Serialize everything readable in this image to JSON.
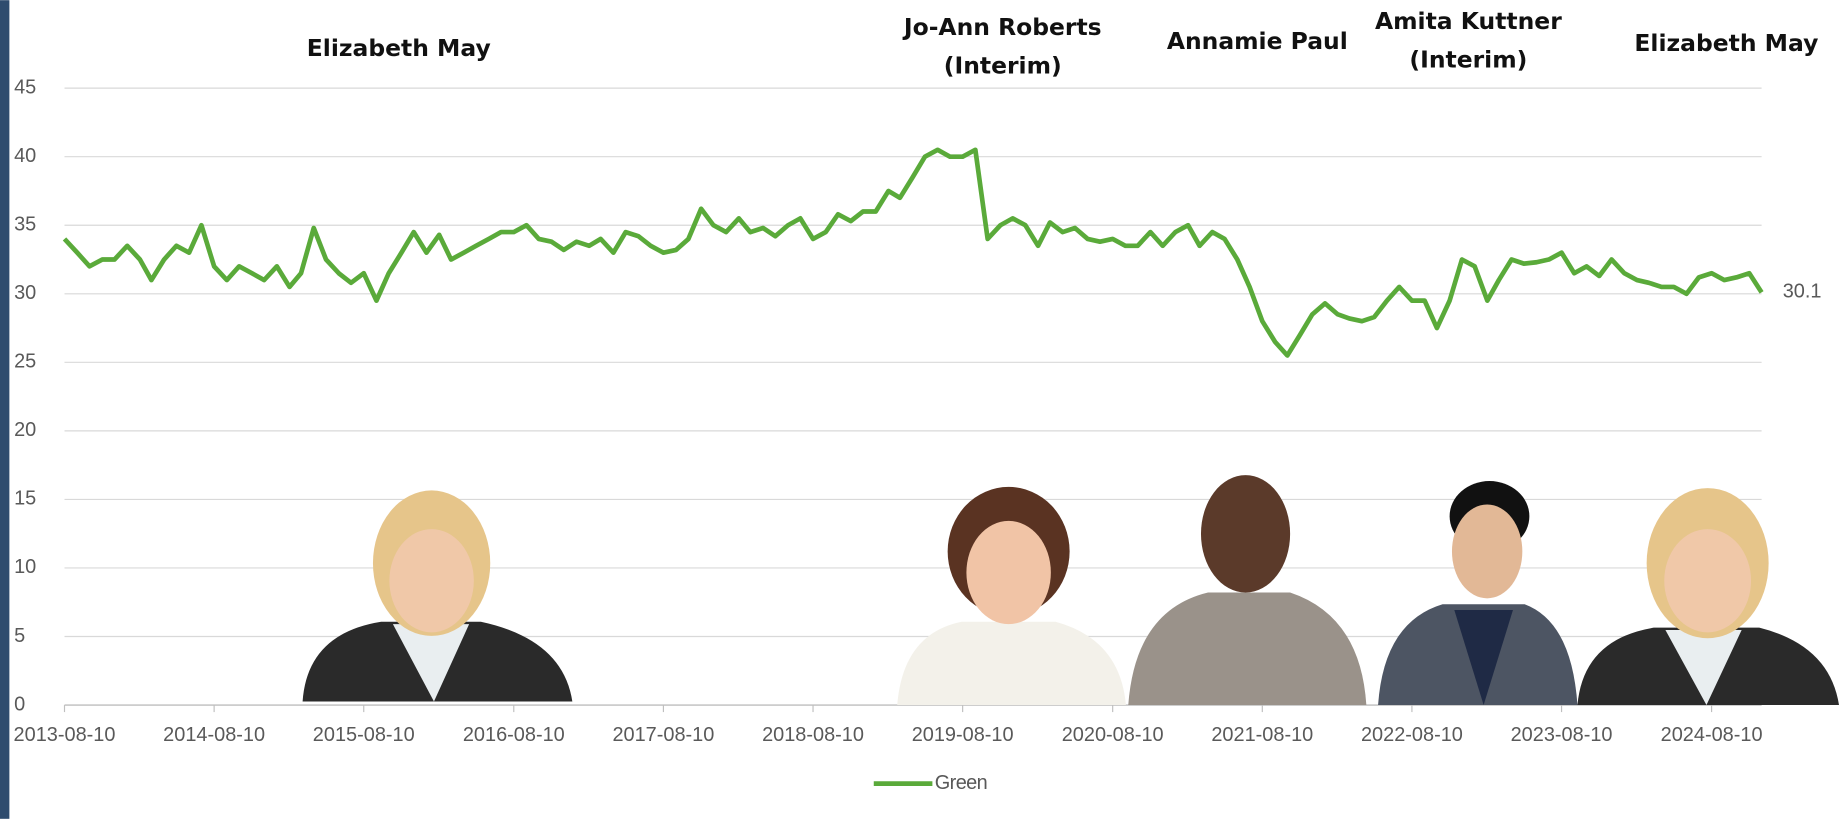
{
  "chart_data": {
    "type": "line",
    "annotations": [
      [
        "Elizabeth May"
      ],
      [
        "Jo-Ann Roberts",
        "(Interim)"
      ],
      [
        "Annamie Paul"
      ],
      [
        "Amita Kuttner",
        "(Interim)"
      ],
      [
        "Elizabeth May"
      ]
    ],
    "x": [
      "2013-08-10",
      "2013-09-10",
      "2013-10-10",
      "2013-11-10",
      "2013-12-10",
      "2014-01-10",
      "2014-02-10",
      "2014-03-10",
      "2014-04-10",
      "2014-05-10",
      "2014-06-10",
      "2014-07-10",
      "2014-08-10",
      "2014-09-10",
      "2014-10-10",
      "2014-11-10",
      "2014-12-10",
      "2015-01-10",
      "2015-02-10",
      "2015-03-10",
      "2015-04-10",
      "2015-05-10",
      "2015-06-10",
      "2015-07-10",
      "2015-08-10",
      "2015-09-10",
      "2015-10-10",
      "2015-11-10",
      "2015-12-10",
      "2016-01-10",
      "2016-02-10",
      "2016-03-10",
      "2016-04-10",
      "2016-05-10",
      "2016-06-10",
      "2016-07-10",
      "2016-08-10",
      "2016-09-10",
      "2016-10-10",
      "2016-11-10",
      "2016-12-10",
      "2017-01-10",
      "2017-02-10",
      "2017-03-10",
      "2017-04-10",
      "2017-05-10",
      "2017-06-10",
      "2017-07-10",
      "2017-08-10",
      "2017-09-10",
      "2017-10-10",
      "2017-11-10",
      "2017-12-10",
      "2018-01-10",
      "2018-02-10",
      "2018-03-10",
      "2018-04-10",
      "2018-05-10",
      "2018-06-10",
      "2018-07-10",
      "2018-08-10",
      "2018-09-10",
      "2018-10-10",
      "2018-11-10",
      "2018-12-10",
      "2019-01-10",
      "2019-02-10",
      "2019-03-10",
      "2019-04-10",
      "2019-05-10",
      "2019-06-10",
      "2019-07-10",
      "2019-08-10",
      "2019-09-10",
      "2019-10-10",
      "2019-11-10",
      "2019-12-10",
      "2020-01-10",
      "2020-02-10",
      "2020-03-10",
      "2020-04-10",
      "2020-05-10",
      "2020-06-10",
      "2020-07-10",
      "2020-08-10",
      "2020-09-10",
      "2020-10-10",
      "2020-11-10",
      "2020-12-10",
      "2021-01-10",
      "2021-02-10",
      "2021-03-10",
      "2021-04-10",
      "2021-05-10",
      "2021-06-10",
      "2021-07-10",
      "2021-08-10",
      "2021-09-10",
      "2021-10-10",
      "2021-11-10",
      "2021-12-10",
      "2022-01-10",
      "2022-02-10",
      "2022-03-10",
      "2022-04-10",
      "2022-05-10",
      "2022-06-10",
      "2022-07-10",
      "2022-08-10",
      "2022-09-10",
      "2022-10-10",
      "2022-11-10",
      "2022-12-10",
      "2023-01-10",
      "2023-02-10",
      "2023-03-10",
      "2023-04-10",
      "2023-05-10",
      "2023-06-10",
      "2023-07-10",
      "2023-08-10",
      "2023-09-10",
      "2023-10-10",
      "2023-11-10",
      "2023-12-10",
      "2024-01-10",
      "2024-02-10",
      "2024-03-10",
      "2024-04-10",
      "2024-05-10",
      "2024-06-10",
      "2024-07-10",
      "2024-08-10",
      "2024-09-10",
      "2024-10-10",
      "2024-11-10",
      "2024-12-10"
    ],
    "series": [
      {
        "name": "Green",
        "color": "#5aaa3a",
        "values": [
          34,
          33,
          32,
          32.5,
          32.5,
          33.5,
          32.5,
          31,
          32.5,
          33.5,
          33,
          35,
          32,
          31,
          32,
          31.5,
          31,
          32,
          30.5,
          31.5,
          34.8,
          32.5,
          31.5,
          30.8,
          31.5,
          29.5,
          31.5,
          33,
          34.5,
          33,
          34.3,
          32.5,
          33,
          33.5,
          34,
          34.5,
          34.5,
          35,
          34,
          33.8,
          33.2,
          33.8,
          33.5,
          34,
          33,
          34.5,
          34.2,
          33.5,
          33,
          33.2,
          34,
          36.2,
          35,
          34.5,
          35.5,
          34.5,
          34.8,
          34.2,
          35,
          35.5,
          34,
          34.5,
          35.8,
          35.3,
          36,
          36,
          37.5,
          37,
          38.5,
          40,
          40.5,
          40,
          40,
          40.5,
          34,
          35,
          35.5,
          35,
          33.5,
          35.2,
          34.5,
          34.8,
          34,
          33.8,
          34,
          33.5,
          33.5,
          34.5,
          33.5,
          34.5,
          35,
          33.5,
          34.5,
          34,
          32.5,
          30.5,
          28,
          26.5,
          25.5,
          27,
          28.5,
          29.3,
          28.5,
          28.2,
          28,
          28.3,
          29.5,
          30.5,
          29.5,
          29.5,
          27.5,
          29.5,
          32.5,
          32,
          29.5,
          31,
          32.5,
          32.2,
          32.3,
          32.5,
          33,
          31.5,
          32,
          31.3,
          32.5,
          31.5,
          31,
          30.8,
          30.5,
          30.5,
          30,
          31.2,
          31.5,
          31,
          31.2,
          31.5,
          30.1
        ]
      }
    ],
    "xlim": [
      "2013-08-10",
      "2024-12-10"
    ],
    "xticks": [
      "2013-08-10",
      "2014-08-10",
      "2015-08-10",
      "2016-08-10",
      "2017-08-10",
      "2018-08-10",
      "2019-08-10",
      "2020-08-10",
      "2021-08-10",
      "2022-08-10",
      "2023-08-10",
      "2024-08-10"
    ],
    "ylim": [
      0,
      45
    ],
    "yticks": [
      0,
      5,
      10,
      15,
      20,
      25,
      30,
      35,
      40,
      45
    ],
    "grid": true,
    "legend": "bottom"
  }
}
